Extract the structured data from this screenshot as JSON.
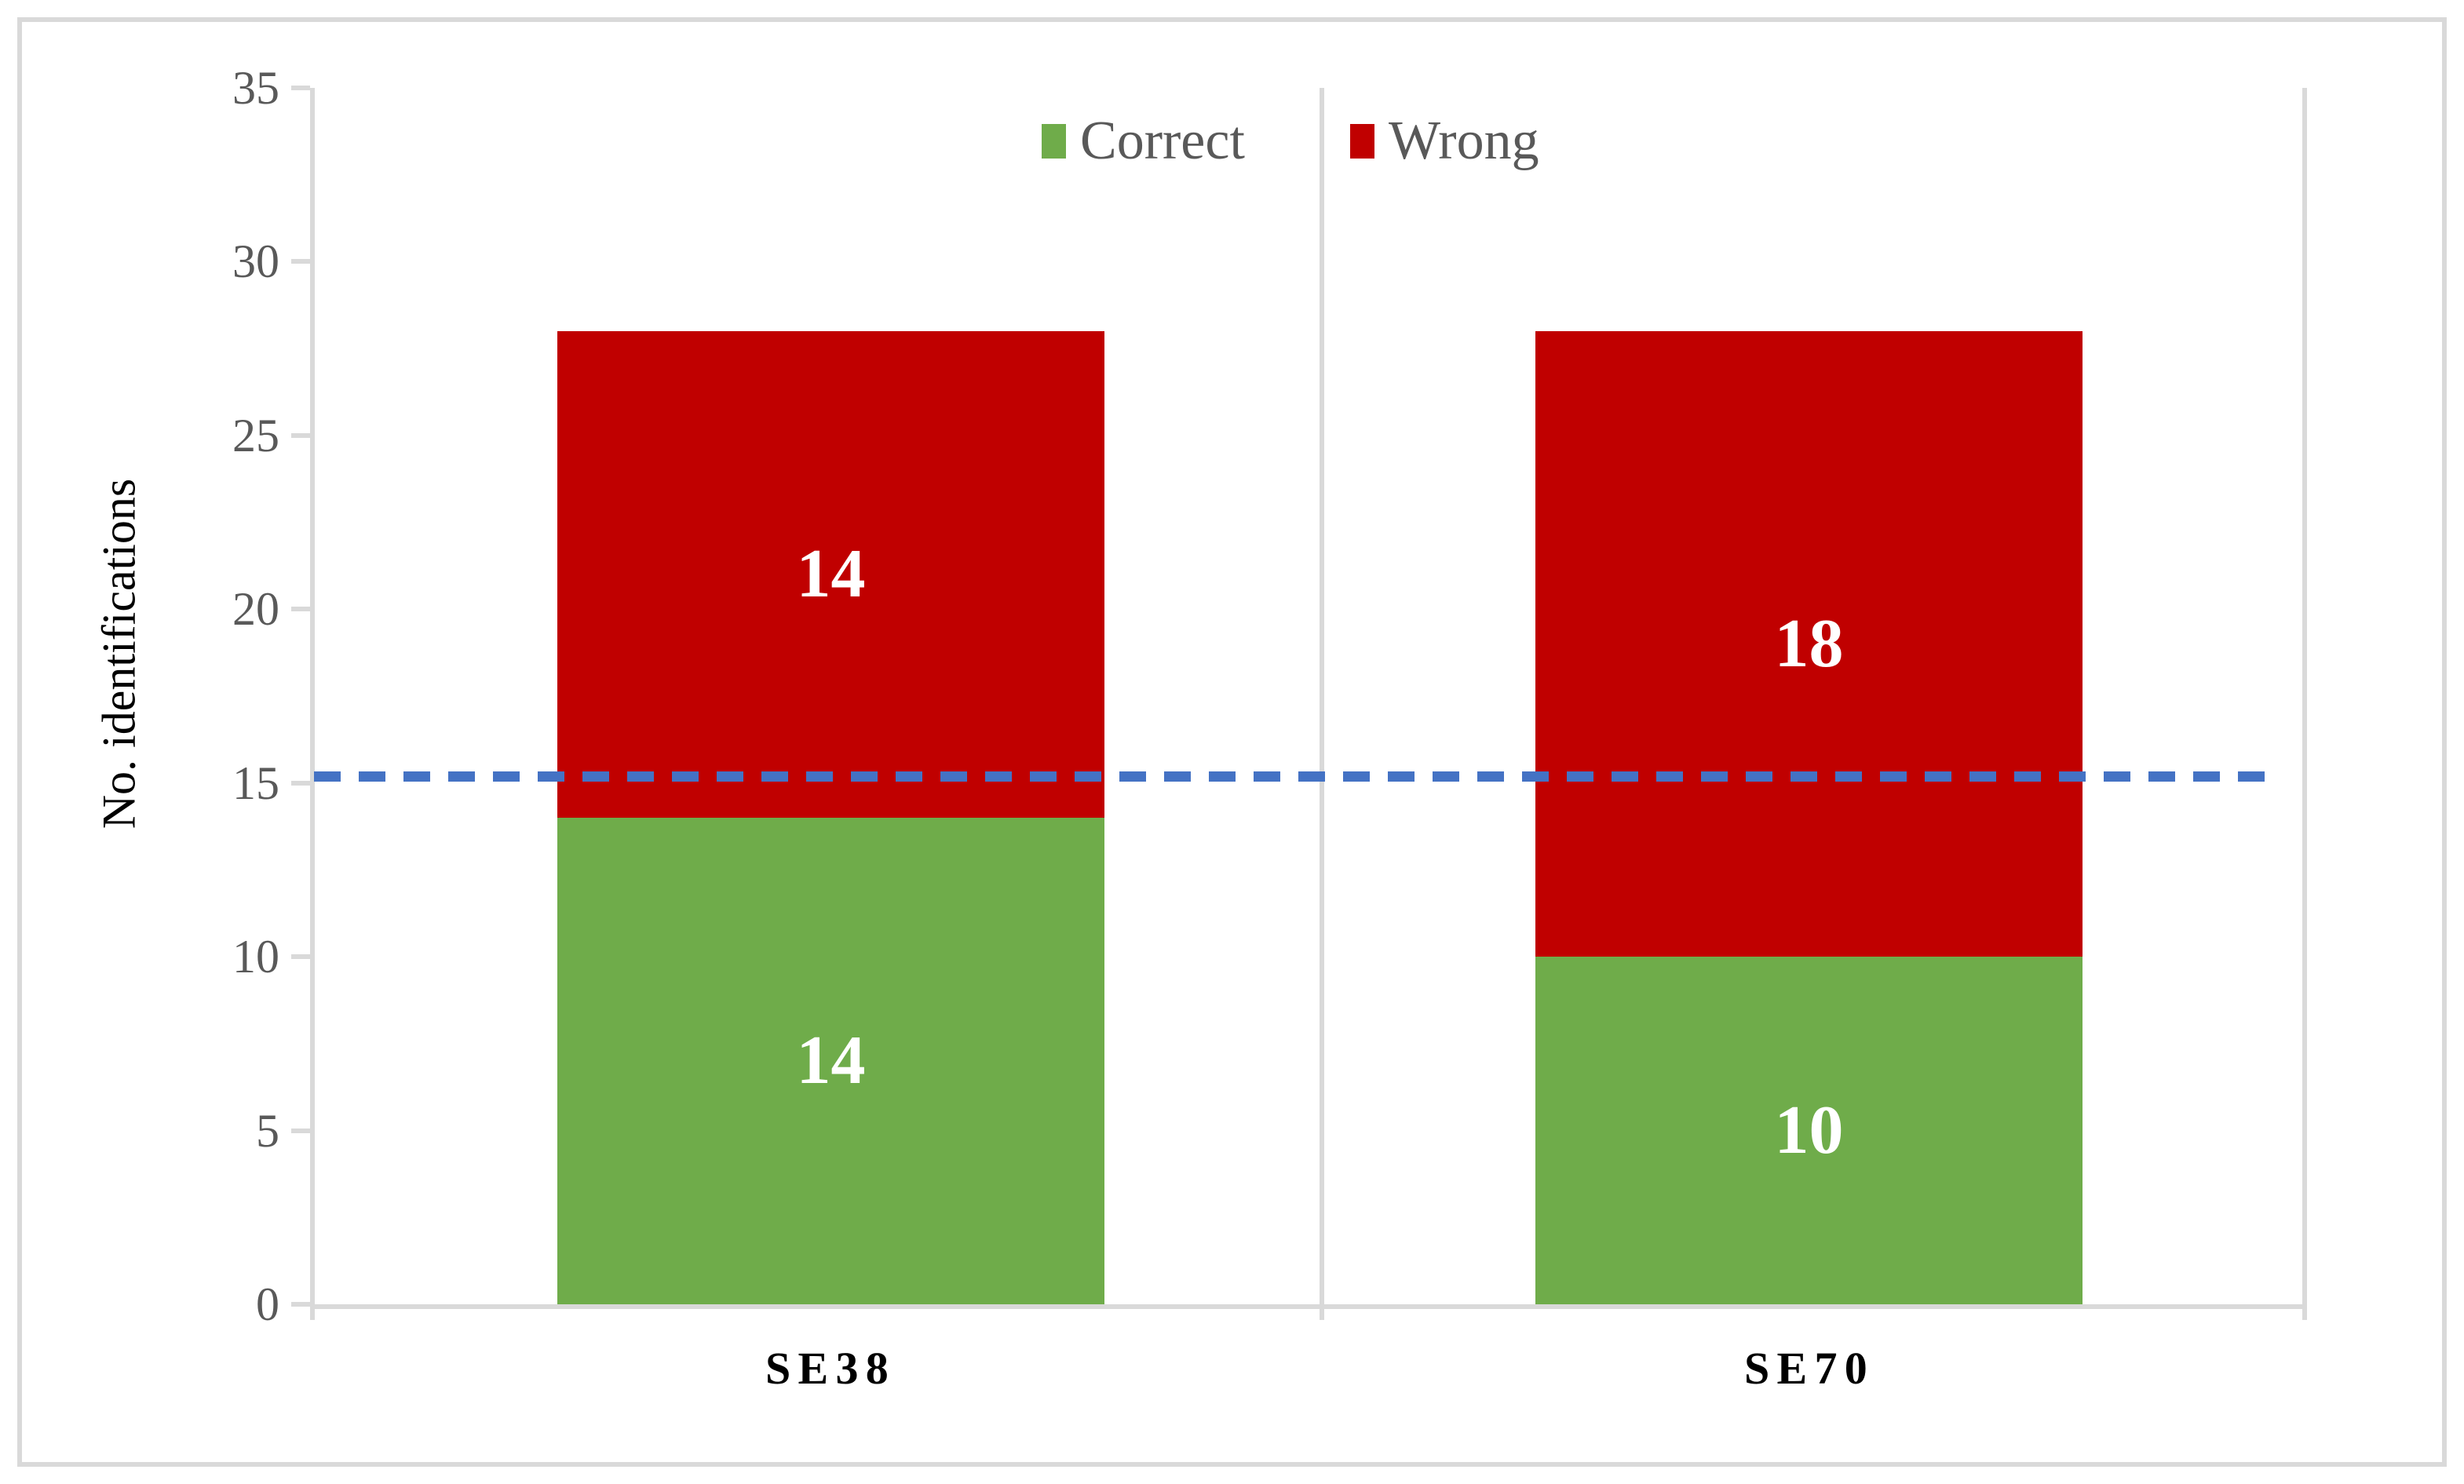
{
  "figure": {
    "background": "#FFFFFF",
    "border_color": "#D9D9D9"
  },
  "chart_data": {
    "type": "bar",
    "stacked": true,
    "title": "",
    "xlabel": "",
    "ylabel": "No. identifications",
    "categories": [
      "SE38",
      "SE70"
    ],
    "series": [
      {
        "name": "Correct",
        "color": "#6FAC4A",
        "values": [
          14,
          10
        ]
      },
      {
        "name": "Wrong",
        "color": "#C00000",
        "values": [
          14,
          18
        ]
      }
    ],
    "data_labels": {
      "se38_wrong": 14,
      "se38_correct": 14,
      "se70_wrong": 18,
      "se70_correct": 10
    },
    "data_label_color": "#FFFFFF",
    "ylim": [
      0,
      35
    ],
    "yticks": [
      35,
      30,
      25,
      20,
      15,
      10,
      5,
      0
    ],
    "threshold_line": {
      "value": 15.2,
      "color": "#4472C4",
      "style": "dashed"
    },
    "legend_position": "top-center",
    "grid": "category-separators-only",
    "axis_color": "#D9D9D9",
    "tick_label_color": "#595959",
    "legend_text_color": "#595959",
    "category_label_color": "#000000"
  }
}
